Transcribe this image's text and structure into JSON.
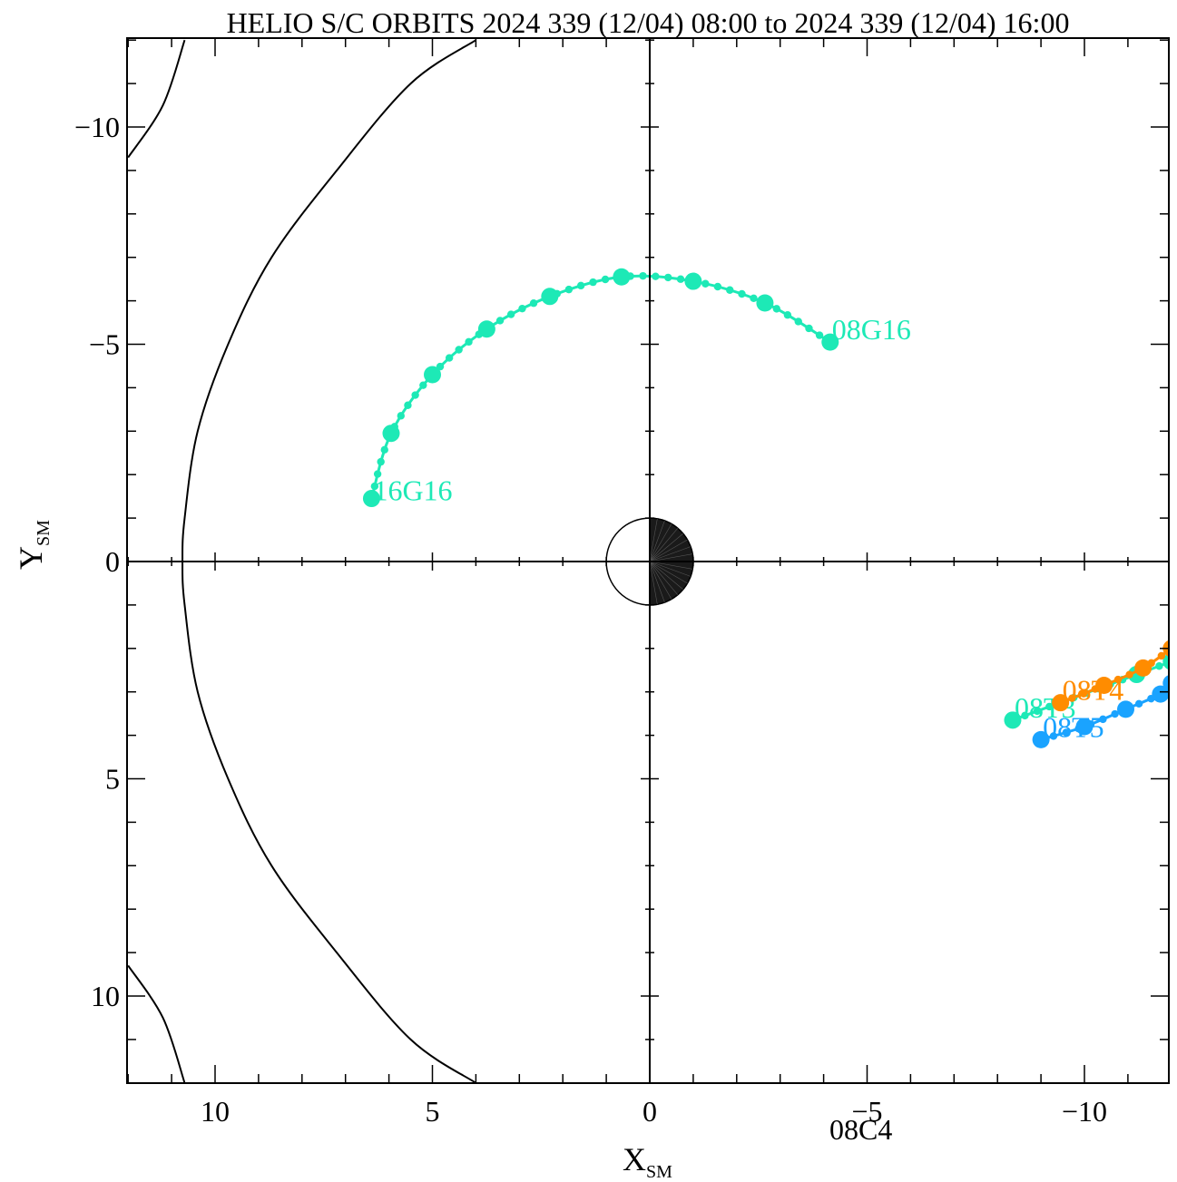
{
  "title": "HELIO S/C ORBITS 2024 339 (12/04) 08:00 to 2024 339 (12/04) 16:00",
  "axes": {
    "x_label_main": "X",
    "x_label_sub": "SM",
    "y_label_main": "Y",
    "y_label_sub": "SM",
    "x_ticks": [
      {
        "value": 10,
        "label": "10"
      },
      {
        "value": 5,
        "label": "5"
      },
      {
        "value": 0,
        "label": "0"
      },
      {
        "value": -5,
        "label": "−5"
      },
      {
        "value": -10,
        "label": "−10"
      }
    ],
    "y_ticks": [
      {
        "value": -10,
        "label": "−10"
      },
      {
        "value": -5,
        "label": "−5"
      },
      {
        "value": 0,
        "label": "0"
      },
      {
        "value": 5,
        "label": "5"
      },
      {
        "value": 10,
        "label": "10"
      }
    ]
  },
  "footer_label": "08C4",
  "chart_data": {
    "type": "scatter",
    "title": "HELIO S/C ORBITS 2024 339 (12/04) 08:00 to 2024 339 (12/04) 16:00",
    "xlabel": "X_SM",
    "ylabel": "Y_SM",
    "xlim": [
      12,
      -12
    ],
    "ylim": [
      -12,
      12
    ],
    "x_reversed": true,
    "y_reversed": true,
    "grid": false,
    "crosshair_at_origin": true,
    "earth": {
      "x": 0,
      "y": 0,
      "radius": 1,
      "night_side": "negative-x"
    },
    "boundaries": [
      {
        "name": "magnetopause",
        "points": [
          [
            4.0,
            -12.0
          ],
          [
            5.5,
            -11.0
          ],
          [
            7.2,
            -9.0
          ],
          [
            8.7,
            -7.0
          ],
          [
            9.7,
            -5.0
          ],
          [
            10.4,
            -3.0
          ],
          [
            10.7,
            -1.0
          ],
          [
            10.75,
            0.0
          ],
          [
            10.7,
            1.0
          ],
          [
            10.4,
            3.0
          ],
          [
            9.7,
            5.0
          ],
          [
            8.7,
            7.0
          ],
          [
            7.2,
            9.0
          ],
          [
            5.5,
            11.0
          ],
          [
            4.0,
            12.0
          ]
        ]
      },
      {
        "name": "bow-shock-upper",
        "points": [
          [
            12.0,
            -9.3
          ],
          [
            11.2,
            -10.5
          ],
          [
            10.7,
            -12.0
          ]
        ]
      },
      {
        "name": "bow-shock-lower",
        "points": [
          [
            12.0,
            9.3
          ],
          [
            11.2,
            10.5
          ],
          [
            10.7,
            12.0
          ]
        ]
      }
    ],
    "series": [
      {
        "name": "G16",
        "color": "#1de9b6",
        "start_label": "08G16",
        "end_label": "16G16",
        "points": [
          [
            -4.15,
            -5.05
          ],
          [
            -2.65,
            -5.95
          ],
          [
            -1.0,
            -6.45
          ],
          [
            0.65,
            -6.55
          ],
          [
            2.3,
            -6.1
          ],
          [
            3.75,
            -5.35
          ],
          [
            5.0,
            -4.3
          ],
          [
            5.95,
            -2.95
          ],
          [
            6.4,
            -1.45
          ]
        ]
      },
      {
        "name": "T3",
        "color": "#1de9b6",
        "start_label": "08T3",
        "end_label": "",
        "points": [
          [
            -8.35,
            3.65
          ],
          [
            -11.2,
            2.6
          ],
          [
            -12.0,
            2.3
          ]
        ]
      },
      {
        "name": "T4",
        "color": "#ff8c00",
        "start_label": "08T4",
        "end_label": "",
        "points": [
          [
            -9.45,
            3.25
          ],
          [
            -10.45,
            2.85
          ],
          [
            -11.35,
            2.45
          ],
          [
            -12.0,
            2.0
          ]
        ]
      },
      {
        "name": "T5",
        "color": "#1aa3ff",
        "start_label": "08T5",
        "end_label": "",
        "points": [
          [
            -9.0,
            4.1
          ],
          [
            -10.0,
            3.8
          ],
          [
            -10.95,
            3.4
          ],
          [
            -11.75,
            3.05
          ],
          [
            -12.0,
            2.8
          ]
        ]
      }
    ]
  }
}
